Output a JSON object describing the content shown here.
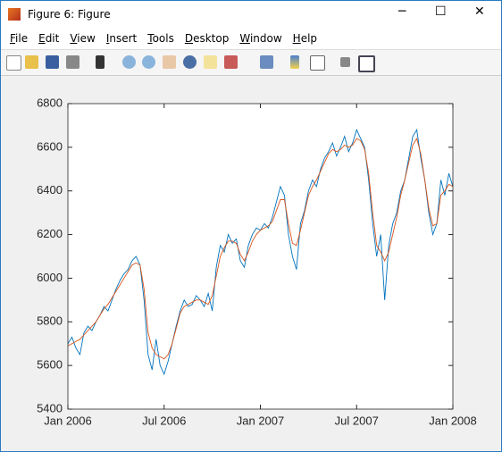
{
  "window": {
    "title": "Figure 6: Figure",
    "menu": [
      "File",
      "Edit",
      "View",
      "Insert",
      "Tools",
      "Desktop",
      "Window",
      "Help"
    ]
  },
  "chart_data": {
    "type": "line",
    "x": [
      0,
      0.25,
      0.5,
      0.75,
      1,
      1.25,
      1.5,
      1.75,
      2,
      2.25,
      2.5,
      2.75,
      3,
      3.25,
      3.5,
      3.75,
      4,
      4.25,
      4.5,
      4.75,
      5,
      5.25,
      5.5,
      5.75,
      6,
      6.25,
      6.5,
      6.75,
      7,
      7.25,
      7.5,
      7.75,
      8,
      8.25,
      8.5,
      8.75,
      9,
      9.25,
      9.5,
      9.75,
      10,
      10.25,
      10.5,
      10.75,
      11,
      11.25,
      11.5,
      11.75,
      12,
      12.25,
      12.5,
      12.75,
      13,
      13.25,
      13.5,
      13.75,
      14,
      14.25,
      14.5,
      14.75,
      15,
      15.25,
      15.5,
      15.75,
      16,
      16.25,
      16.5,
      16.75,
      17,
      17.25,
      17.5,
      17.75,
      18,
      18.25,
      18.5,
      18.75,
      19,
      19.25,
      19.5,
      19.75,
      20,
      20.25,
      20.5,
      20.75,
      21,
      21.25,
      21.5,
      21.75,
      22,
      22.25,
      22.5,
      22.75,
      23,
      23.25,
      23.5,
      23.75,
      24
    ],
    "series": [
      {
        "color": "#0072bd",
        "values": [
          5700,
          5730,
          5680,
          5650,
          5750,
          5780,
          5760,
          5800,
          5830,
          5870,
          5850,
          5900,
          5950,
          5990,
          6020,
          6040,
          6080,
          6100,
          6060,
          5900,
          5650,
          5580,
          5720,
          5600,
          5560,
          5620,
          5700,
          5780,
          5850,
          5900,
          5870,
          5880,
          5920,
          5900,
          5870,
          5930,
          5850,
          6050,
          6150,
          6120,
          6200,
          6160,
          6180,
          6080,
          6050,
          6150,
          6200,
          6230,
          6220,
          6250,
          6230,
          6280,
          6350,
          6420,
          6380,
          6200,
          6100,
          6040,
          6250,
          6310,
          6400,
          6450,
          6420,
          6500,
          6550,
          6580,
          6620,
          6560,
          6600,
          6650,
          6580,
          6620,
          6680,
          6640,
          6600,
          6450,
          6250,
          6100,
          6200,
          5900,
          6150,
          6250,
          6300,
          6400,
          6450,
          6550,
          6650,
          6680,
          6550,
          6450,
          6300,
          6200,
          6250,
          6450,
          6380,
          6480,
          6420
        ]
      },
      {
        "color": "#d95319",
        "values": [
          5690,
          5700,
          5710,
          5720,
          5740,
          5760,
          5780,
          5800,
          5830,
          5860,
          5880,
          5910,
          5940,
          5970,
          6000,
          6030,
          6060,
          6070,
          6060,
          5950,
          5750,
          5680,
          5650,
          5640,
          5630,
          5650,
          5700,
          5770,
          5840,
          5870,
          5880,
          5890,
          5900,
          5900,
          5890,
          5880,
          5920,
          6010,
          6100,
          6140,
          6170,
          6170,
          6160,
          6110,
          6080,
          6120,
          6170,
          6200,
          6220,
          6230,
          6240,
          6260,
          6310,
          6360,
          6360,
          6250,
          6160,
          6150,
          6220,
          6300,
          6380,
          6420,
          6450,
          6490,
          6530,
          6570,
          6590,
          6580,
          6590,
          6610,
          6600,
          6610,
          6640,
          6630,
          6590,
          6480,
          6300,
          6150,
          6120,
          6080,
          6120,
          6200,
          6280,
          6380,
          6450,
          6530,
          6610,
          6640,
          6570,
          6450,
          6320,
          6240,
          6250,
          6380,
          6400,
          6430,
          6420
        ]
      }
    ],
    "xlim": [
      0,
      24
    ],
    "xticks": [
      {
        "value": 0,
        "label": "Jan 2006"
      },
      {
        "value": 6,
        "label": "Jul 2006"
      },
      {
        "value": 12,
        "label": "Jan 2007"
      },
      {
        "value": 18,
        "label": "Jul 2007"
      },
      {
        "value": 24,
        "label": "Jan 2008"
      }
    ],
    "ylim": [
      5400,
      6800
    ],
    "yticks": [
      5400,
      5600,
      5800,
      6000,
      6200,
      6400,
      6600,
      6800
    ],
    "grid": false
  }
}
